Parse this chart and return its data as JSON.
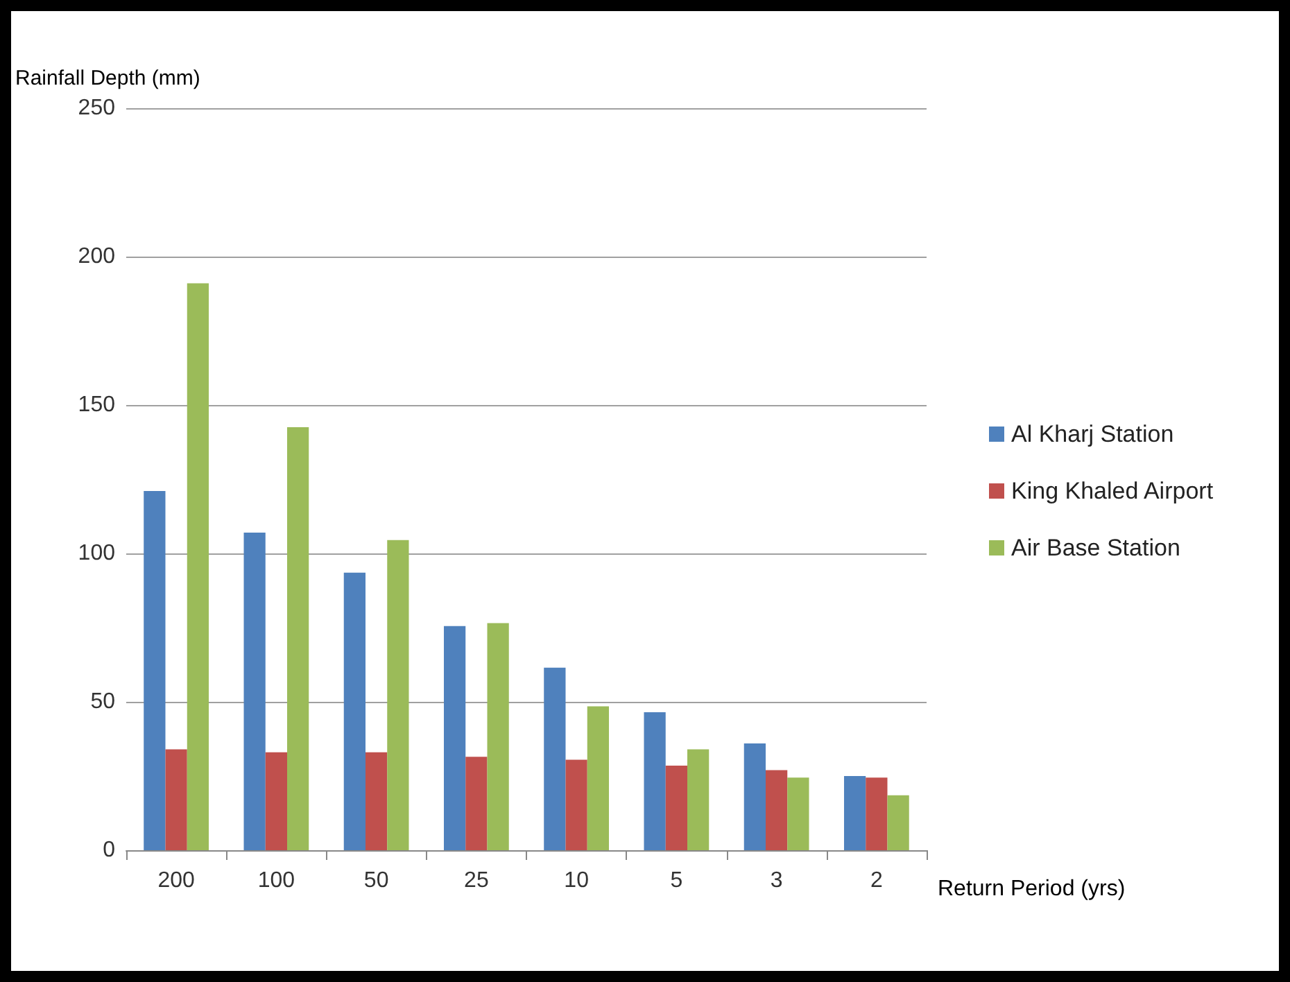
{
  "chart_data": {
    "type": "bar",
    "xlabel": "Return Period (yrs)",
    "ylabel": "Rainfall Depth (mm)",
    "categories": [
      "200",
      "100",
      "50",
      "25",
      "10",
      "5",
      "3",
      "2"
    ],
    "series": [
      {
        "name": "Al Kharj Station",
        "color": "#4f81bd",
        "values": [
          121,
          107,
          93.5,
          75.5,
          61.5,
          46.5,
          36,
          25
        ]
      },
      {
        "name": "King Khaled Airport",
        "color": "#c0504d",
        "values": [
          34,
          33,
          33,
          31.5,
          30.5,
          28.5,
          27,
          24.5
        ]
      },
      {
        "name": "Air Base Station",
        "color": "#9bbb59",
        "values": [
          191,
          142.5,
          104.5,
          76.5,
          48.5,
          34,
          24.5,
          18.5
        ]
      }
    ],
    "ylim": [
      0,
      250
    ],
    "yticks": [
      0,
      50,
      100,
      150,
      200,
      250
    ],
    "grid": "y",
    "legend": "right"
  }
}
